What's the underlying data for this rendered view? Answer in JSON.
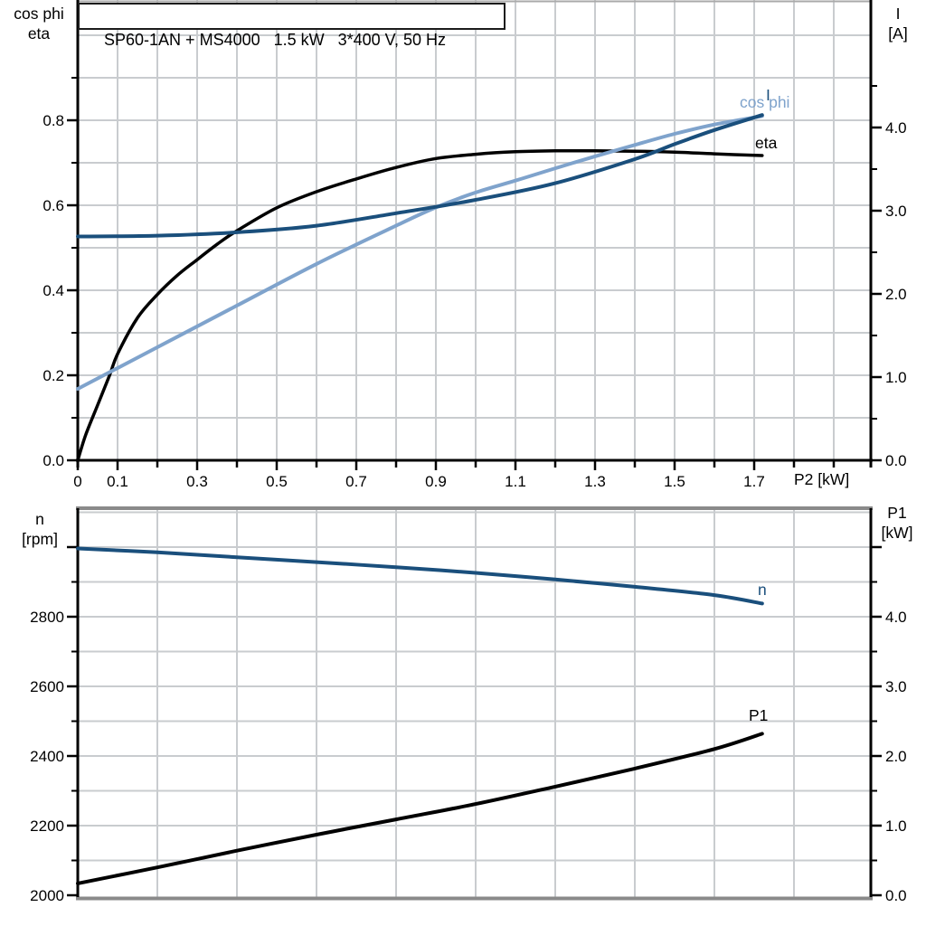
{
  "header": {
    "title": "SP60-1AN + MS4000   1.5 kW   3*400 V, 50 Hz"
  },
  "colors": {
    "black": "#000000",
    "dark_blue": "#1a4f7c",
    "light_blue": "#7fa3cc",
    "grid": "#c9cccf",
    "frame_gray": "#8a8a8a",
    "background": "#ffffff"
  },
  "chart_data": [
    {
      "id": "motor-electrical-curves",
      "type": "line",
      "title": "SP60-1AN + MS4000   1.5 kW   3*400 V, 50 Hz",
      "xlabel": "P2 [kW]",
      "grid": true,
      "legend_position": "inline-labels",
      "x_axis": {
        "range": [
          0,
          2.0
        ],
        "tick_step": 0.1,
        "labeled_values": [
          0,
          0.1,
          0.3,
          0.5,
          0.7,
          0.9,
          1.1,
          1.3,
          1.5,
          1.7
        ],
        "labels": [
          "0",
          "0.1",
          "0.3",
          "0.5",
          "0.7",
          "0.9",
          "1.1",
          "1.3",
          "1.5",
          "1.7"
        ]
      },
      "left_axis": {
        "line1": "cos phi",
        "line2": "eta",
        "range": [
          0,
          1.07
        ],
        "tick_values": [
          0,
          0.2,
          0.4,
          0.6,
          0.8
        ],
        "tick_labels": [
          "0.0",
          "0.2",
          "0.4",
          "0.6",
          "0.8"
        ]
      },
      "right_axis": {
        "line1": "I",
        "line2": "[A]",
        "range": [
          0,
          5.5
        ],
        "tick_values": [
          0,
          1,
          2,
          3,
          4
        ],
        "tick_labels": [
          "0.0",
          "1.0",
          "2.0",
          "3.0",
          "4.0"
        ]
      },
      "series": [
        {
          "name": "eta",
          "label": "eta",
          "axis": "left",
          "color_key": "black",
          "points": [
            [
              0,
              0
            ],
            [
              0.02,
              0.06
            ],
            [
              0.05,
              0.13
            ],
            [
              0.08,
              0.2
            ],
            [
              0.1,
              0.25
            ],
            [
              0.15,
              0.335
            ],
            [
              0.2,
              0.39
            ],
            [
              0.25,
              0.435
            ],
            [
              0.3,
              0.472
            ],
            [
              0.35,
              0.508
            ],
            [
              0.4,
              0.54
            ],
            [
              0.5,
              0.594
            ],
            [
              0.6,
              0.632
            ],
            [
              0.7,
              0.662
            ],
            [
              0.8,
              0.689
            ],
            [
              0.9,
              0.71
            ],
            [
              1.0,
              0.72
            ],
            [
              1.1,
              0.726
            ],
            [
              1.2,
              0.728
            ],
            [
              1.3,
              0.728
            ],
            [
              1.4,
              0.727
            ],
            [
              1.5,
              0.725
            ],
            [
              1.6,
              0.721
            ],
            [
              1.72,
              0.717
            ]
          ]
        },
        {
          "name": "cos_phi",
          "label": "cos phi",
          "axis": "left",
          "color_key": "light_blue",
          "points": [
            [
              0,
              0.168
            ],
            [
              0.2,
              0.266
            ],
            [
              0.4,
              0.364
            ],
            [
              0.6,
              0.462
            ],
            [
              0.8,
              0.552
            ],
            [
              0.9,
              0.595
            ],
            [
              1.0,
              0.63
            ],
            [
              1.1,
              0.658
            ],
            [
              1.2,
              0.687
            ],
            [
              1.3,
              0.715
            ],
            [
              1.4,
              0.742
            ],
            [
              1.5,
              0.768
            ],
            [
              1.6,
              0.79
            ],
            [
              1.72,
              0.81
            ]
          ]
        },
        {
          "name": "I",
          "label": "I",
          "axis": "right",
          "color_key": "dark_blue",
          "points": [
            [
              0,
              2.69
            ],
            [
              0.2,
              2.7
            ],
            [
              0.4,
              2.74
            ],
            [
              0.6,
              2.82
            ],
            [
              0.8,
              2.97
            ],
            [
              1.0,
              3.13
            ],
            [
              1.2,
              3.33
            ],
            [
              1.4,
              3.62
            ],
            [
              1.5,
              3.8
            ],
            [
              1.6,
              3.97
            ],
            [
              1.72,
              4.15
            ]
          ]
        }
      ]
    },
    {
      "id": "speed-and-input-power-curves",
      "type": "line",
      "title": "",
      "xlabel": "",
      "grid": true,
      "x_axis": {
        "range": [
          0,
          2.0
        ],
        "grid_step": 0.2
      },
      "left_axis": {
        "line1": "n",
        "line2": "[rpm]",
        "range": [
          2000,
          3120
        ],
        "tick_values": [
          2000,
          2200,
          2400,
          2600,
          2800
        ],
        "tick_labels": [
          "2000",
          "2200",
          "2400",
          "2600",
          "2800"
        ]
      },
      "right_axis": {
        "line1": "P1",
        "line2": "[kW]",
        "range": [
          0,
          5.6
        ],
        "tick_values": [
          0,
          1,
          2,
          3,
          4
        ],
        "tick_labels": [
          "0.0",
          "1.0",
          "2.0",
          "3.0",
          "4.0"
        ]
      },
      "series": [
        {
          "name": "n",
          "label": "n",
          "axis": "left",
          "color_key": "dark_blue",
          "points": [
            [
              0,
              2996
            ],
            [
              0.2,
              2985
            ],
            [
              0.4,
              2971
            ],
            [
              0.6,
              2957
            ],
            [
              0.8,
              2942
            ],
            [
              1.0,
              2926
            ],
            [
              1.2,
              2907
            ],
            [
              1.4,
              2886
            ],
            [
              1.6,
              2862
            ],
            [
              1.72,
              2838
            ]
          ]
        },
        {
          "name": "P1",
          "label": "P1",
          "axis": "right",
          "color_key": "black",
          "points": [
            [
              0,
              0.17
            ],
            [
              0.2,
              0.4
            ],
            [
              0.4,
              0.64
            ],
            [
              0.6,
              0.87
            ],
            [
              0.8,
              1.09
            ],
            [
              1.0,
              1.31
            ],
            [
              1.2,
              1.56
            ],
            [
              1.4,
              1.82
            ],
            [
              1.6,
              2.1
            ],
            [
              1.72,
              2.32
            ]
          ]
        }
      ]
    }
  ]
}
